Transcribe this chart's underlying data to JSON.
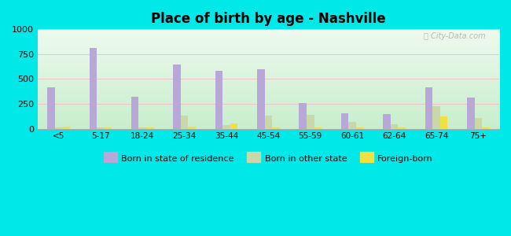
{
  "title": "Place of birth by age - Nashville",
  "categories": [
    "<5",
    "5-17",
    "18-24",
    "25-34",
    "35-44",
    "45-54",
    "55-59",
    "60-61",
    "62-64",
    "65-74",
    "75+"
  ],
  "born_in_state": [
    420,
    810,
    320,
    650,
    580,
    600,
    260,
    155,
    145,
    415,
    315
  ],
  "born_other_state": [
    15,
    15,
    15,
    130,
    35,
    130,
    140,
    70,
    40,
    230,
    110
  ],
  "foreign_born": [
    20,
    15,
    15,
    20,
    55,
    15,
    15,
    10,
    10,
    120,
    10
  ],
  "color_state": "#b8a8d8",
  "color_other": "#c8d8a8",
  "color_foreign": "#f0e040",
  "ylim": [
    0,
    1000
  ],
  "yticks": [
    0,
    250,
    500,
    750,
    1000
  ],
  "background_outer": "#00e8e8",
  "legend_labels": [
    "Born in state of residence",
    "Born in other state",
    "Foreign-born"
  ],
  "bar_width": 0.18
}
